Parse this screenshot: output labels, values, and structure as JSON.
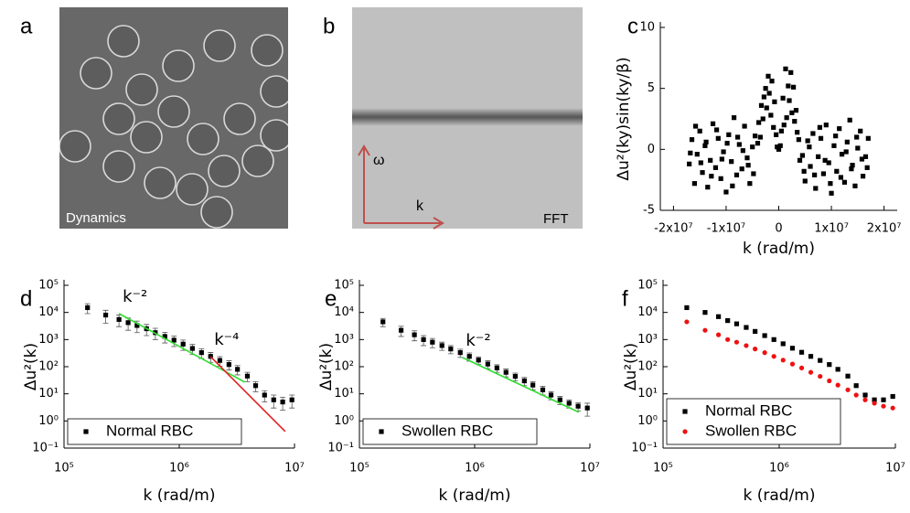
{
  "panels": [
    {
      "label": "a",
      "caption": "Dynamics"
    },
    {
      "label": "b",
      "caption": "FFT",
      "vertical_axis": "ω",
      "horizontal_axis": "k"
    }
  ],
  "chart_data": [
    {
      "type": "scatter",
      "label": "c",
      "xlabel": "k (rad/m)",
      "ylabel": "Δu²(ky)sin(ky/β)",
      "color": "#000000",
      "marker": "square",
      "x": [
        -17000000.0,
        -16500000.0,
        -16000000.0,
        -15500000.0,
        -15000000.0,
        -14500000.0,
        -14000000.0,
        -13500000.0,
        -13000000.0,
        -12500000.0,
        -12000000.0,
        -11500000.0,
        -11000000.0,
        -10500000.0,
        -10000000.0,
        -9500000.0,
        -9000000.0,
        -8500000.0,
        -8000000.0,
        -7500000.0,
        -7000000.0,
        -6500000.0,
        -6000000.0,
        -5500000.0,
        -5000000.0,
        -4500000.0,
        -16800000.0,
        -15800000.0,
        -14800000.0,
        -13800000.0,
        -12800000.0,
        -11800000.0,
        -10800000.0,
        -9800000.0,
        -8800000.0,
        -7800000.0,
        -6800000.0,
        -5800000.0,
        -4800000.0,
        -4000000.0,
        -3800000.0,
        -3500000.0,
        -3300000.0,
        -3000000.0,
        -2800000.0,
        -2500000.0,
        -2300000.0,
        -2000000.0,
        -1800000.0,
        -1500000.0,
        -1300000.0,
        -1000000.0,
        -800000.0,
        -500000.0,
        -300000.0,
        0,
        300000.0,
        500000.0,
        800000.0,
        1000000.0,
        1300000.0,
        1500000.0,
        1800000.0,
        2000000.0,
        2300000.0,
        2500000.0,
        2800000.0,
        3000000.0,
        3300000.0,
        3500000.0,
        3800000.0,
        4000000.0,
        4500000.0,
        5000000.0,
        5500000.0,
        6000000.0,
        6500000.0,
        7000000.0,
        7500000.0,
        8000000.0,
        8500000.0,
        9000000.0,
        9500000.0,
        10000000.0,
        10500000.0,
        11000000.0,
        11500000.0,
        12000000.0,
        12500000.0,
        13000000.0,
        13500000.0,
        14000000.0,
        14500000.0,
        15000000.0,
        15500000.0,
        16000000.0,
        16500000.0,
        17000000.0,
        4800000.0,
        5800000.0,
        6800000.0,
        7800000.0,
        8800000.0,
        9800000.0,
        10800000.0,
        11800000.0,
        12800000.0,
        13800000.0,
        14800000.0,
        15800000.0,
        16800000.0
      ],
      "values": [
        -1.2,
        0.8,
        -2.8,
        -0.4,
        1.5,
        -1.9,
        0.3,
        -3.1,
        -0.9,
        2.1,
        -1.5,
        0.9,
        -2.4,
        -0.2,
        -3.5,
        1.2,
        -1.0,
        2.6,
        -2.1,
        0.4,
        -1.6,
        1.9,
        -0.7,
        -2.8,
        0.2,
        1.1,
        -0.3,
        1.9,
        -1.1,
        0.6,
        -2.2,
        1.6,
        -0.8,
        0.5,
        -3.0,
        1.0,
        -0.1,
        -1.3,
        -2.0,
        0.5,
        2.2,
        1.0,
        3.6,
        2.5,
        4.3,
        5.0,
        3.4,
        6.0,
        4.6,
        2.8,
        5.6,
        1.8,
        3.9,
        1.2,
        0.2,
        0.0,
        0.3,
        1.5,
        4.2,
        2.0,
        6.6,
        2.6,
        5.2,
        4.0,
        6.3,
        3.0,
        5.1,
        2.3,
        3.2,
        1.4,
        0.8,
        -0.9,
        -0.5,
        -2.6,
        0.7,
        -1.4,
        1.3,
        -3.2,
        -0.6,
        0.9,
        -2.0,
        2.0,
        -1.1,
        -3.6,
        0.3,
        -1.8,
        1.7,
        -0.4,
        -2.7,
        0.6,
        2.4,
        -1.3,
        -3.0,
        0.1,
        1.5,
        -2.2,
        -0.6,
        0.9,
        -1.8,
        0.2,
        -2.1,
        1.8,
        -0.9,
        -2.8,
        1.1,
        -2.3,
        -0.2,
        -1.6,
        1.0,
        -0.8,
        -1.5
      ],
      "xlim": [
        -22500000.0,
        22500000.0
      ],
      "ylim": [
        -5,
        10
      ],
      "xticks": [
        {
          "value": -20000000.0,
          "label": "-2x10⁷"
        },
        {
          "value": -10000000.0,
          "label": "-1x10⁷"
        },
        0,
        {
          "value": 10000000.0,
          "label": "1x10⁷"
        },
        {
          "value": 20000000.0,
          "label": "2x10⁷"
        }
      ],
      "yticks": [
        -5,
        0,
        5,
        10
      ]
    },
    {
      "type": "errorbar",
      "label": "d",
      "xlabel": "k (rad/m)",
      "ylabel": "Δu²(k)",
      "xscale": "log",
      "yscale": "log",
      "xlim": [
        100000.0,
        10000000.0
      ],
      "ylim": [
        0.1,
        100000.0
      ],
      "xticks": [
        {
          "value": 100000.0,
          "label": "10⁵"
        },
        {
          "value": 1000000.0,
          "label": "10⁶"
        },
        {
          "value": 10000000.0,
          "label": "10⁷"
        }
      ],
      "yticks": [
        {
          "value": 0.1,
          "label": "10⁻¹"
        },
        {
          "value": 1,
          "label": "10⁰"
        },
        {
          "value": 10,
          "label": "10¹"
        },
        {
          "value": 100,
          "label": "10²"
        },
        {
          "value": 1000,
          "label": "10³"
        },
        {
          "value": 10000,
          "label": "10⁴"
        },
        {
          "value": 100000,
          "label": "10⁵"
        }
      ],
      "legend": "lower left",
      "series": [
        {
          "name": "Normal RBC",
          "color": "#000000",
          "marker": "square",
          "x": [
            160000.0,
            230000.0,
            300000.0,
            360000.0,
            430000.0,
            520000.0,
            620000.0,
            750000.0,
            900000.0,
            1080000.0,
            1300000.0,
            1560000.0,
            1870000.0,
            2250000.0,
            2700000.0,
            3200000.0,
            3900000.0,
            4600000.0,
            5500000.0,
            6600000.0,
            7900000.0,
            9500000.0
          ],
          "values": [
            15000,
            8000,
            5500,
            4200,
            3300,
            2500,
            1800,
            1300,
            950,
            680,
            470,
            330,
            240,
            170,
            120,
            80,
            45,
            20,
            9,
            6,
            5,
            6
          ],
          "errors": [
            6000,
            4000,
            2500,
            2000,
            1500,
            1100,
            800,
            550,
            400,
            280,
            190,
            130,
            95,
            65,
            45,
            30,
            17,
            8,
            4,
            3,
            2.5,
            3
          ]
        }
      ],
      "fits": [
        {
          "label": "k⁻²",
          "color": "#33dd33",
          "x": [
            300000.0,
            3700000.0
          ],
          "values": [
            9100,
            27
          ]
        },
        {
          "label": "k⁻⁴",
          "color": "#dd2222",
          "x": [
            1870000.0,
            8300000.0
          ],
          "values": [
            234,
            0.41
          ]
        }
      ]
    },
    {
      "type": "errorbar",
      "label": "e",
      "xlabel": "k (rad/m)",
      "ylabel": "Δu²(k)",
      "xscale": "log",
      "yscale": "log",
      "xlim": [
        100000.0,
        10000000.0
      ],
      "ylim": [
        0.1,
        100000.0
      ],
      "xticks": [
        {
          "value": 100000.0,
          "label": "10⁵"
        },
        {
          "value": 1000000.0,
          "label": "10⁶"
        },
        {
          "value": 10000000.0,
          "label": "10⁷"
        }
      ],
      "yticks": [
        {
          "value": 0.1,
          "label": "10⁻¹"
        },
        {
          "value": 1,
          "label": "10⁰"
        },
        {
          "value": 10,
          "label": "10¹"
        },
        {
          "value": 100,
          "label": "10²"
        },
        {
          "value": 1000,
          "label": "10³"
        },
        {
          "value": 10000,
          "label": "10⁴"
        },
        {
          "value": 100000,
          "label": "10⁵"
        }
      ],
      "legend": "lower left",
      "series": [
        {
          "name": "Swollen RBC",
          "color": "#000000",
          "marker": "square",
          "x": [
            160000.0,
            230000.0,
            300000.0,
            360000.0,
            430000.0,
            520000.0,
            620000.0,
            750000.0,
            900000.0,
            1080000.0,
            1300000.0,
            1560000.0,
            1870000.0,
            2250000.0,
            2700000.0,
            3200000.0,
            3900000.0,
            4600000.0,
            5500000.0,
            6600000.0,
            7900000.0,
            9500000.0
          ],
          "values": [
            4500,
            2200,
            1500,
            1000,
            800,
            600,
            450,
            330,
            240,
            175,
            125,
            90,
            62,
            44,
            30,
            21,
            14,
            9,
            6,
            4.5,
            3.5,
            3
          ],
          "errors": [
            1500,
            900,
            600,
            400,
            300,
            200,
            150,
            110,
            80,
            55,
            40,
            28,
            20,
            14,
            10,
            7,
            5,
            3,
            2,
            1.5,
            1.2,
            1.5
          ]
        }
      ],
      "fits": [
        {
          "label": "k⁻²",
          "color": "#33dd33",
          "x": [
            780000.0,
            8000000.0
          ],
          "values": [
            220,
            2.1
          ]
        }
      ]
    },
    {
      "type": "scatter",
      "label": "f",
      "xlabel": "k (rad/m)",
      "ylabel": "Δu²(k)",
      "xscale": "log",
      "yscale": "log",
      "xlim": [
        100000.0,
        10000000.0
      ],
      "ylim": [
        0.1,
        100000.0
      ],
      "xticks": [
        {
          "value": 100000.0,
          "label": "10⁵"
        },
        {
          "value": 1000000.0,
          "label": "10⁶"
        },
        {
          "value": 10000000.0,
          "label": "10⁷"
        }
      ],
      "yticks": [
        {
          "value": 0.1,
          "label": "10⁻¹"
        },
        {
          "value": 1,
          "label": "10⁰"
        },
        {
          "value": 10,
          "label": "10¹"
        },
        {
          "value": 100,
          "label": "10²"
        },
        {
          "value": 1000,
          "label": "10³"
        },
        {
          "value": 10000,
          "label": "10⁴"
        },
        {
          "value": 100000,
          "label": "10⁵"
        }
      ],
      "legend": "lower left",
      "series": [
        {
          "name": "Normal RBC",
          "color": "#000000",
          "marker": "square",
          "x": [
            160000.0,
            230000.0,
            300000.0,
            360000.0,
            430000.0,
            520000.0,
            620000.0,
            750000.0,
            900000.0,
            1080000.0,
            1300000.0,
            1560000.0,
            1870000.0,
            2250000.0,
            2700000.0,
            3200000.0,
            3900000.0,
            4600000.0,
            5500000.0,
            6600000.0,
            7900000.0,
            9500000.0
          ],
          "values": [
            15000,
            10000,
            7000,
            5000,
            3800,
            2800,
            2000,
            1400,
            1000,
            700,
            480,
            340,
            240,
            170,
            120,
            80,
            45,
            20,
            9,
            6,
            6,
            8
          ]
        },
        {
          "name": "Swollen RBC",
          "color": "#ee1111",
          "marker": "circle",
          "x": [
            160000.0,
            230000.0,
            300000.0,
            360000.0,
            430000.0,
            520000.0,
            620000.0,
            750000.0,
            900000.0,
            1080000.0,
            1300000.0,
            1560000.0,
            1870000.0,
            2250000.0,
            2700000.0,
            3200000.0,
            3900000.0,
            4600000.0,
            5500000.0,
            6600000.0,
            7900000.0,
            9500000.0
          ],
          "values": [
            4500,
            2200,
            1500,
            1000,
            800,
            600,
            450,
            330,
            240,
            175,
            125,
            90,
            62,
            44,
            30,
            21,
            14,
            9,
            6,
            4.5,
            3.5,
            3
          ]
        }
      ]
    }
  ]
}
